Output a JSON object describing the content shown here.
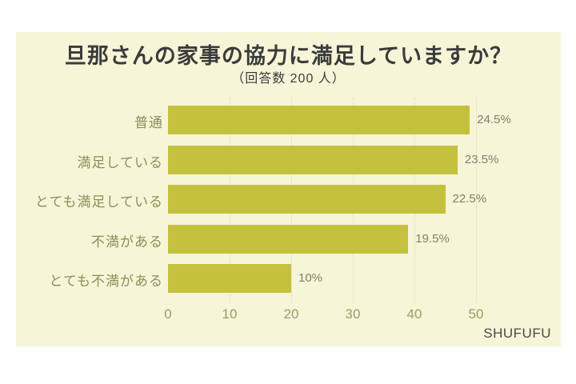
{
  "page": {
    "background": "#ffffff",
    "panel_background": "#f6f5d8"
  },
  "header": {
    "title": "旦那さんの家事の協力に満足していますか？",
    "subtitle": "（回答数 200 人）"
  },
  "chart_data": {
    "type": "bar",
    "orientation": "horizontal",
    "title": "旦那さんの家事の協力に満足していますか？",
    "subtitle": "（回答数 200 人）",
    "total_responses": 200,
    "categories": [
      "普通",
      "満足している",
      "とても満足している",
      "不満がある",
      "とても不満がある"
    ],
    "values": [
      49,
      47,
      45,
      39,
      20
    ],
    "value_labels": [
      "24.5%",
      "23.5%",
      "22.5%",
      "19.5%",
      "10%"
    ],
    "percentages": [
      24.5,
      23.5,
      22.5,
      19.5,
      10
    ],
    "x_ticks": [
      0,
      10,
      20,
      30,
      40,
      50
    ],
    "xlim": [
      0,
      50
    ],
    "xlabel": "",
    "ylabel": "",
    "bar_color": "#c3c13e",
    "grid": "vertical-dotted",
    "legend": "none"
  },
  "footer": {
    "brand": "SHUFUFU"
  }
}
